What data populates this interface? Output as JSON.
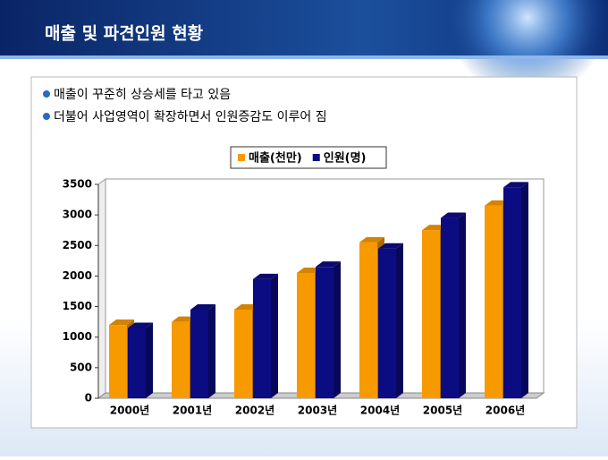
{
  "header": {
    "title": "매출 및 파견인원 현황"
  },
  "bullets": [
    "매출이 꾸준히 상승세를 타고 있음",
    "더불어 사업영역이 확장하면서 인원증감도 이루어 짐"
  ],
  "chart_data": {
    "type": "bar",
    "categories": [
      "2000년",
      "2001년",
      "2002년",
      "2003년",
      "2004년",
      "2005년",
      "2006년"
    ],
    "series": [
      {
        "name": "매출(천만)",
        "color": "#f79a00",
        "values": [
          1200,
          1250,
          1450,
          2050,
          2550,
          2750,
          3150
        ]
      },
      {
        "name": "인원(명)",
        "color": "#0c0c82",
        "values": [
          1150,
          1450,
          1950,
          2150,
          2450,
          2950,
          3450
        ]
      }
    ],
    "ylim": [
      0,
      3500
    ],
    "yticks": [
      0,
      500,
      1000,
      1500,
      2000,
      2500,
      3000,
      3500
    ],
    "legend": "top"
  }
}
